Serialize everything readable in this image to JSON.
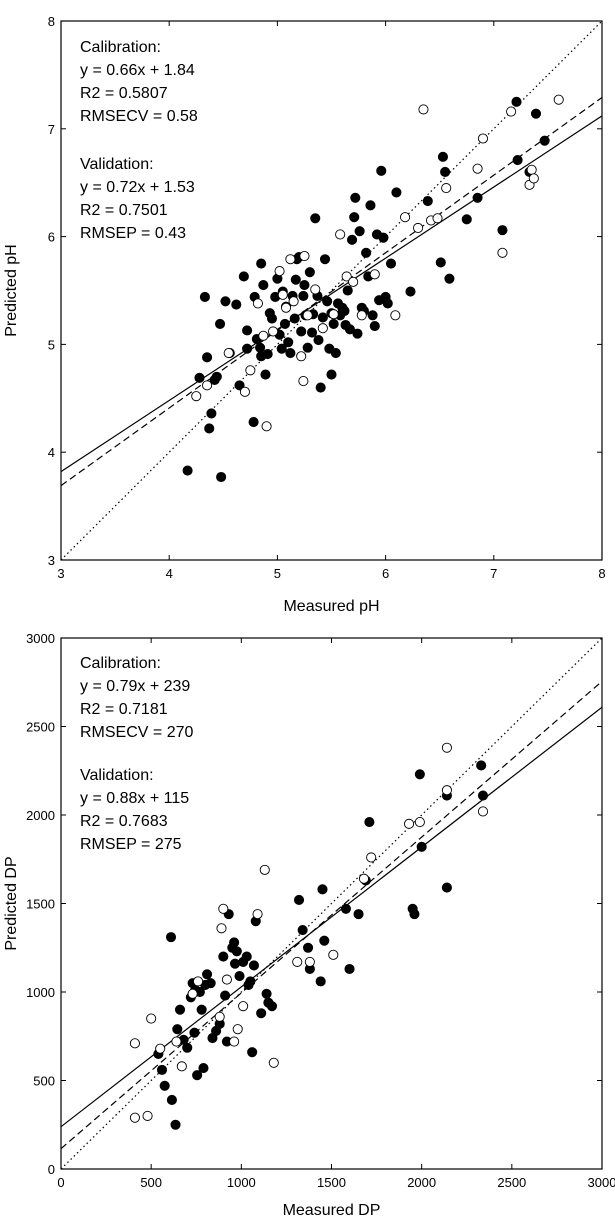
{
  "chart_data": [
    {
      "type": "scatter",
      "xlabel": "Measured pH",
      "ylabel": "Predicted pH",
      "xlim": [
        3,
        8
      ],
      "ylim": [
        3,
        8
      ],
      "xticks": [
        "3",
        "4",
        "5",
        "6",
        "7",
        "8"
      ],
      "yticks": [
        "3",
        "4",
        "5",
        "6",
        "7",
        "8"
      ],
      "grid": false,
      "annotations": {
        "calibration": [
          "Calibration:",
          "y = 0.66x + 1.84",
          "R2 = 0.5807",
          "RMSECV = 0.58"
        ],
        "validation": [
          "Validation:",
          "y = 0.72x + 1.53",
          "R2 = 0.7501",
          "RMSEP =  0.43"
        ]
      },
      "lines": [
        {
          "style": "solid",
          "slope": 0.66,
          "intercept": 1.84
        },
        {
          "style": "dashed",
          "slope": 0.72,
          "intercept": 1.53
        },
        {
          "style": "dotted",
          "slope": 1,
          "intercept": 0
        }
      ],
      "series": [
        {
          "marker": "filled",
          "points": [
            [
              4.17,
              3.83
            ],
            [
              4.28,
              4.69
            ],
            [
              4.33,
              5.44
            ],
            [
              4.35,
              4.88
            ],
            [
              4.37,
              4.22
            ],
            [
              4.39,
              4.36
            ],
            [
              4.42,
              4.67
            ],
            [
              4.44,
              4.7
            ],
            [
              4.47,
              5.19
            ],
            [
              4.48,
              3.77
            ],
            [
              4.52,
              5.4
            ],
            [
              4.56,
              4.92
            ],
            [
              4.62,
              5.37
            ],
            [
              4.65,
              4.62
            ],
            [
              4.69,
              5.63
            ],
            [
              4.72,
              4.96
            ],
            [
              4.72,
              5.13
            ],
            [
              4.78,
              4.28
            ],
            [
              4.79,
              5.44
            ],
            [
              4.81,
              5.05
            ],
            [
              4.84,
              4.97
            ],
            [
              4.85,
              5.75
            ],
            [
              4.85,
              4.89
            ],
            [
              4.87,
              5.55
            ],
            [
              4.89,
              4.72
            ],
            [
              4.91,
              4.91
            ],
            [
              4.93,
              5.29
            ],
            [
              4.95,
              5.24
            ],
            [
              4.98,
              5.44
            ],
            [
              5.0,
              5.61
            ],
            [
              5.02,
              5.09
            ],
            [
              5.04,
              4.96
            ],
            [
              5.05,
              5.49
            ],
            [
              5.07,
              5.19
            ],
            [
              5.08,
              5.35
            ],
            [
              5.1,
              5.02
            ],
            [
              5.12,
              4.92
            ],
            [
              5.14,
              5.45
            ],
            [
              5.16,
              5.24
            ],
            [
              5.17,
              5.6
            ],
            [
              5.18,
              5.79
            ],
            [
              5.2,
              5.81
            ],
            [
              5.22,
              5.12
            ],
            [
              5.24,
              5.45
            ],
            [
              5.25,
              5.55
            ],
            [
              5.26,
              5.27
            ],
            [
              5.28,
              4.97
            ],
            [
              5.3,
              5.67
            ],
            [
              5.32,
              5.11
            ],
            [
              5.33,
              5.28
            ],
            [
              5.35,
              6.17
            ],
            [
              5.37,
              5.45
            ],
            [
              5.38,
              5.04
            ],
            [
              5.4,
              4.6
            ],
            [
              5.42,
              5.25
            ],
            [
              5.44,
              5.79
            ],
            [
              5.46,
              5.4
            ],
            [
              5.48,
              4.96
            ],
            [
              5.5,
              5.29
            ],
            [
              5.5,
              4.72
            ],
            [
              5.52,
              5.19
            ],
            [
              5.54,
              4.92
            ],
            [
              5.56,
              5.38
            ],
            [
              5.58,
              5.27
            ],
            [
              5.6,
              5.34
            ],
            [
              5.62,
              5.31
            ],
            [
              5.63,
              5.18
            ],
            [
              5.65,
              5.5
            ],
            [
              5.67,
              5.14
            ],
            [
              5.69,
              5.97
            ],
            [
              5.71,
              6.18
            ],
            [
              5.72,
              6.36
            ],
            [
              5.74,
              5.1
            ],
            [
              5.76,
              6.05
            ],
            [
              5.78,
              5.34
            ],
            [
              5.8,
              5.31
            ],
            [
              5.82,
              5.85
            ],
            [
              5.84,
              5.63
            ],
            [
              5.86,
              6.29
            ],
            [
              5.88,
              5.27
            ],
            [
              5.9,
              5.17
            ],
            [
              5.92,
              6.02
            ],
            [
              5.94,
              5.41
            ],
            [
              5.96,
              6.61
            ],
            [
              5.98,
              5.99
            ],
            [
              6.0,
              5.44
            ],
            [
              6.02,
              5.38
            ],
            [
              6.05,
              5.75
            ],
            [
              6.1,
              6.41
            ],
            [
              6.23,
              5.49
            ],
            [
              6.39,
              6.33
            ],
            [
              6.51,
              5.76
            ],
            [
              6.53,
              6.74
            ],
            [
              6.55,
              6.6
            ],
            [
              6.59,
              5.61
            ],
            [
              6.75,
              6.16
            ],
            [
              6.85,
              6.36
            ],
            [
              7.08,
              6.06
            ],
            [
              7.21,
              7.25
            ],
            [
              7.22,
              6.71
            ],
            [
              7.33,
              6.6
            ],
            [
              7.39,
              7.14
            ],
            [
              7.47,
              6.89
            ]
          ]
        },
        {
          "marker": "open",
          "points": [
            [
              4.25,
              4.52
            ],
            [
              4.35,
              4.62
            ],
            [
              4.55,
              4.92
            ],
            [
              4.7,
              4.56
            ],
            [
              4.75,
              4.76
            ],
            [
              4.82,
              5.38
            ],
            [
              4.87,
              5.08
            ],
            [
              4.9,
              4.24
            ],
            [
              4.96,
              5.12
            ],
            [
              5.02,
              5.68
            ],
            [
              5.05,
              5.46
            ],
            [
              5.08,
              5.34
            ],
            [
              5.12,
              5.79
            ],
            [
              5.15,
              5.4
            ],
            [
              5.22,
              4.89
            ],
            [
              5.24,
              4.66
            ],
            [
              5.25,
              5.82
            ],
            [
              5.28,
              5.27
            ],
            [
              5.35,
              5.51
            ],
            [
              5.42,
              5.15
            ],
            [
              5.52,
              5.28
            ],
            [
              5.58,
              6.02
            ],
            [
              5.64,
              5.63
            ],
            [
              5.7,
              5.58
            ],
            [
              5.78,
              5.27
            ],
            [
              5.9,
              5.65
            ],
            [
              6.09,
              5.27
            ],
            [
              6.18,
              6.18
            ],
            [
              6.3,
              6.08
            ],
            [
              6.35,
              7.18
            ],
            [
              6.42,
              6.15
            ],
            [
              6.48,
              6.17
            ],
            [
              6.56,
              6.45
            ],
            [
              6.85,
              6.63
            ],
            [
              6.9,
              6.91
            ],
            [
              7.08,
              5.85
            ],
            [
              7.16,
              7.16
            ],
            [
              7.33,
              6.48
            ],
            [
              7.35,
              6.62
            ],
            [
              7.37,
              6.54
            ],
            [
              7.6,
              7.27
            ]
          ]
        }
      ]
    },
    {
      "type": "scatter",
      "xlabel": "Measured DP",
      "ylabel": "Predicted DP",
      "xlim": [
        0,
        3000
      ],
      "ylim": [
        0,
        3000
      ],
      "xticks": [
        "0",
        "500",
        "1000",
        "1500",
        "2000",
        "2500",
        "3000"
      ],
      "yticks": [
        "0",
        "500",
        "1000",
        "1500",
        "2000",
        "2500",
        "3000"
      ],
      "grid": false,
      "annotations": {
        "calibration": [
          "Calibration:",
          "y = 0.79x + 239",
          "R2 = 0.7181",
          "RMSECV = 270"
        ],
        "validation": [
          "Validation:",
          "y = 0.88x + 115",
          "R2 = 0.7683",
          "RMSEP =  275"
        ]
      },
      "lines": [
        {
          "style": "solid",
          "slope": 0.79,
          "intercept": 239
        },
        {
          "style": "dashed",
          "slope": 0.88,
          "intercept": 115
        },
        {
          "style": "dotted",
          "slope": 1,
          "intercept": 0
        }
      ],
      "series": [
        {
          "marker": "filled",
          "points": [
            [
              540,
              650
            ],
            [
              560,
              560
            ],
            [
              575,
              470
            ],
            [
              610,
              1310
            ],
            [
              615,
              390
            ],
            [
              635,
              250
            ],
            [
              645,
              790
            ],
            [
              660,
              900
            ],
            [
              680,
              730
            ],
            [
              700,
              685
            ],
            [
              720,
              970
            ],
            [
              730,
              1050
            ],
            [
              740,
              770
            ],
            [
              745,
              1010
            ],
            [
              755,
              530
            ],
            [
              770,
              1000
            ],
            [
              780,
              900
            ],
            [
              790,
              570
            ],
            [
              800,
              1040
            ],
            [
              810,
              1100
            ],
            [
              830,
              1050
            ],
            [
              840,
              740
            ],
            [
              860,
              780
            ],
            [
              880,
              820
            ],
            [
              900,
              1200
            ],
            [
              910,
              980
            ],
            [
              920,
              720
            ],
            [
              930,
              1440
            ],
            [
              950,
              1250
            ],
            [
              960,
              1280
            ],
            [
              965,
              1160
            ],
            [
              975,
              1230
            ],
            [
              990,
              1090
            ],
            [
              1010,
              1170
            ],
            [
              1030,
              1200
            ],
            [
              1040,
              1040
            ],
            [
              1050,
              1060
            ],
            [
              1060,
              660
            ],
            [
              1070,
              1150
            ],
            [
              1080,
              1400
            ],
            [
              1110,
              880
            ],
            [
              1140,
              990
            ],
            [
              1150,
              940
            ],
            [
              1170,
              920
            ],
            [
              1320,
              1520
            ],
            [
              1340,
              1350
            ],
            [
              1370,
              1250
            ],
            [
              1380,
              1130
            ],
            [
              1440,
              1060
            ],
            [
              1450,
              1580
            ],
            [
              1460,
              1290
            ],
            [
              1580,
              1470
            ],
            [
              1600,
              1130
            ],
            [
              1650,
              1440
            ],
            [
              1690,
              1630
            ],
            [
              1710,
              1960
            ],
            [
              1950,
              1470
            ],
            [
              1960,
              1440
            ],
            [
              1990,
              2230
            ],
            [
              2000,
              1820
            ],
            [
              2140,
              2110
            ],
            [
              2140,
              1590
            ],
            [
              2330,
              2280
            ],
            [
              2340,
              2110
            ]
          ]
        },
        {
          "marker": "open",
          "points": [
            [
              410,
              290
            ],
            [
              410,
              710
            ],
            [
              480,
              300
            ],
            [
              500,
              850
            ],
            [
              550,
              680
            ],
            [
              640,
              720
            ],
            [
              670,
              580
            ],
            [
              730,
              990
            ],
            [
              760,
              1060
            ],
            [
              880,
              860
            ],
            [
              890,
              1360
            ],
            [
              900,
              1470
            ],
            [
              920,
              1070
            ],
            [
              960,
              720
            ],
            [
              980,
              790
            ],
            [
              1010,
              920
            ],
            [
              1090,
              1440
            ],
            [
              1130,
              1690
            ],
            [
              1180,
              600
            ],
            [
              1310,
              1170
            ],
            [
              1380,
              1170
            ],
            [
              1510,
              1210
            ],
            [
              1680,
              1640
            ],
            [
              1720,
              1760
            ],
            [
              1930,
              1950
            ],
            [
              1990,
              1960
            ],
            [
              2140,
              2380
            ],
            [
              2140,
              2140
            ],
            [
              2340,
              2020
            ]
          ]
        }
      ]
    }
  ]
}
